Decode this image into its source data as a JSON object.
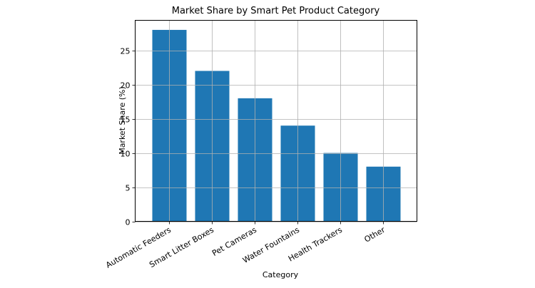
{
  "chart_data": {
    "type": "bar",
    "title": "Market Share by Smart Pet Product Category",
    "xlabel": "Category",
    "ylabel": "Market Share (%)",
    "categories": [
      "Automatic Feeders",
      "Smart Litter Boxes",
      "Pet Cameras",
      "Water Fountains",
      "Health Trackers",
      "Other"
    ],
    "values": [
      28,
      22,
      18,
      14,
      10,
      8
    ],
    "ylim": [
      0,
      29.4
    ],
    "yticks": [
      0,
      5,
      10,
      15,
      20,
      25
    ],
    "grid": true,
    "legend": null,
    "bar_color": "#1f77b4",
    "xtick_rotation": -30
  }
}
